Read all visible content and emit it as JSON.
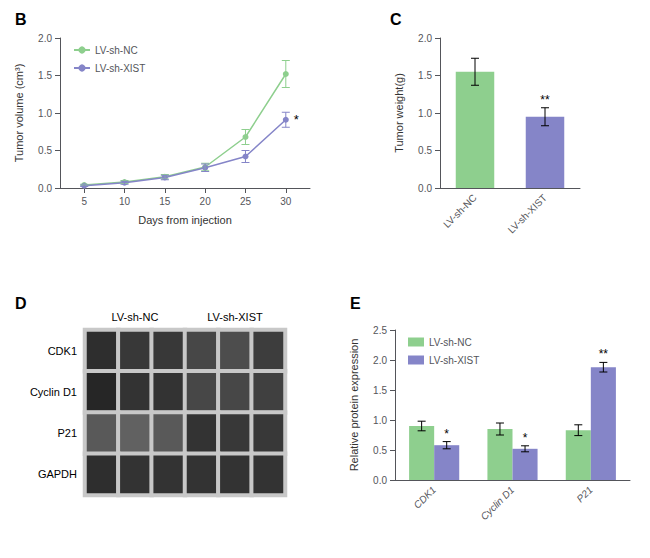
{
  "chart_data": [
    {
      "type": "line",
      "title": "B",
      "x": [
        5,
        10,
        15,
        20,
        25,
        30
      ],
      "xlabel": "Days from injection",
      "ylabel": "Tumor volume (cm³)",
      "xlim": [
        2,
        33
      ],
      "xticks": [
        5,
        10,
        15,
        20,
        25,
        30
      ],
      "ylim": [
        0,
        2.0
      ],
      "yticks": [
        {
          "value": 0.0,
          "label": "0.0"
        },
        0.5,
        {
          "value": 1.0,
          "label": "1.0"
        },
        1.5,
        {
          "value": 2.0,
          "label": "2.0"
        }
      ],
      "grid": false,
      "legend": "upper left",
      "marker": "circle",
      "series": [
        {
          "name": "LV-sh-NC",
          "color": "#8ecf8e",
          "values": [
            0.04,
            0.08,
            0.15,
            0.28,
            0.68,
            1.52
          ],
          "errors": [
            0.01,
            0.02,
            0.03,
            0.05,
            0.1,
            0.18
          ]
        },
        {
          "name": "LV-sh-XIST",
          "color": "#8585c8",
          "values": [
            0.03,
            0.07,
            0.14,
            0.27,
            0.42,
            0.91
          ],
          "errors": [
            0.01,
            0.02,
            0.03,
            0.05,
            0.08,
            0.1
          ]
        }
      ],
      "annotations": [
        {
          "text": "*",
          "x": 30,
          "series": "LV-sh-XIST"
        }
      ]
    },
    {
      "type": "bar",
      "title": "C",
      "categories": [
        "LV-sh-NC",
        "LV-sh-XIST"
      ],
      "values": [
        1.55,
        0.95
      ],
      "errors": [
        0.18,
        0.12
      ],
      "colors": [
        "#8ecf8e",
        "#8585c8"
      ],
      "ylabel": "Tumor weight(g)",
      "ylim": [
        0,
        2.0
      ],
      "yticks": [
        {
          "value": 0.0,
          "label": "0.0"
        },
        0.5,
        {
          "value": 1.0,
          "label": "1.0"
        },
        1.5,
        {
          "value": 2.0,
          "label": "2.0"
        }
      ],
      "grid": false,
      "annotations": [
        {
          "text": "**",
          "category": "LV-sh-XIST"
        }
      ]
    },
    {
      "type": "heatmap",
      "title": "D",
      "categories": [
        null,
        null,
        null,
        null,
        null,
        null
      ],
      "groups": [
        {
          "name": "LV-sh-NC",
          "size": 3
        },
        {
          "name": "LV-sh-XIST",
          "size": 3
        }
      ],
      "y_categories": [
        "CDK1",
        "Cyclin D1",
        "P21",
        "GAPDH"
      ],
      "cells": [
        [
          0.18,
          0.22,
          0.22,
          0.28,
          0.3,
          0.24
        ],
        [
          0.15,
          0.2,
          0.2,
          0.28,
          0.28,
          0.25
        ],
        [
          0.35,
          0.38,
          0.35,
          0.2,
          0.22,
          0.22
        ],
        [
          0.18,
          0.2,
          0.2,
          0.2,
          0.2,
          0.2
        ]
      ],
      "color_range": [
        0,
        1
      ]
    },
    {
      "type": "bar",
      "title": "E",
      "categories": [
        "CDK1",
        "Cyclin D1",
        "P21"
      ],
      "ylabel": "Relative protein expression",
      "ylim": [
        0,
        2.5
      ],
      "yticks": [
        {
          "value": 0.0,
          "label": "0.0"
        },
        0.5,
        {
          "value": 1.0,
          "label": "1.0"
        },
        1.5,
        {
          "value": 2.0,
          "label": "2.0"
        },
        2.5
      ],
      "grid": false,
      "legend": "upper left",
      "series": [
        {
          "name": "LV-sh-NC",
          "color": "#8ecf8e",
          "values": [
            0.9,
            0.85,
            0.83
          ],
          "errors": [
            0.08,
            0.1,
            0.09
          ]
        },
        {
          "name": "LV-sh-XIST",
          "color": "#8585c8",
          "values": [
            0.58,
            0.52,
            1.88
          ],
          "errors": [
            0.06,
            0.05,
            0.08
          ]
        }
      ],
      "annotations": [
        {
          "text": "*",
          "category": "CDK1",
          "series": "LV-sh-XIST"
        },
        {
          "text": "*",
          "category": "Cyclin D1",
          "series": "LV-sh-XIST"
        },
        {
          "text": "**",
          "category": "P21",
          "series": "LV-sh-XIST"
        }
      ]
    }
  ]
}
